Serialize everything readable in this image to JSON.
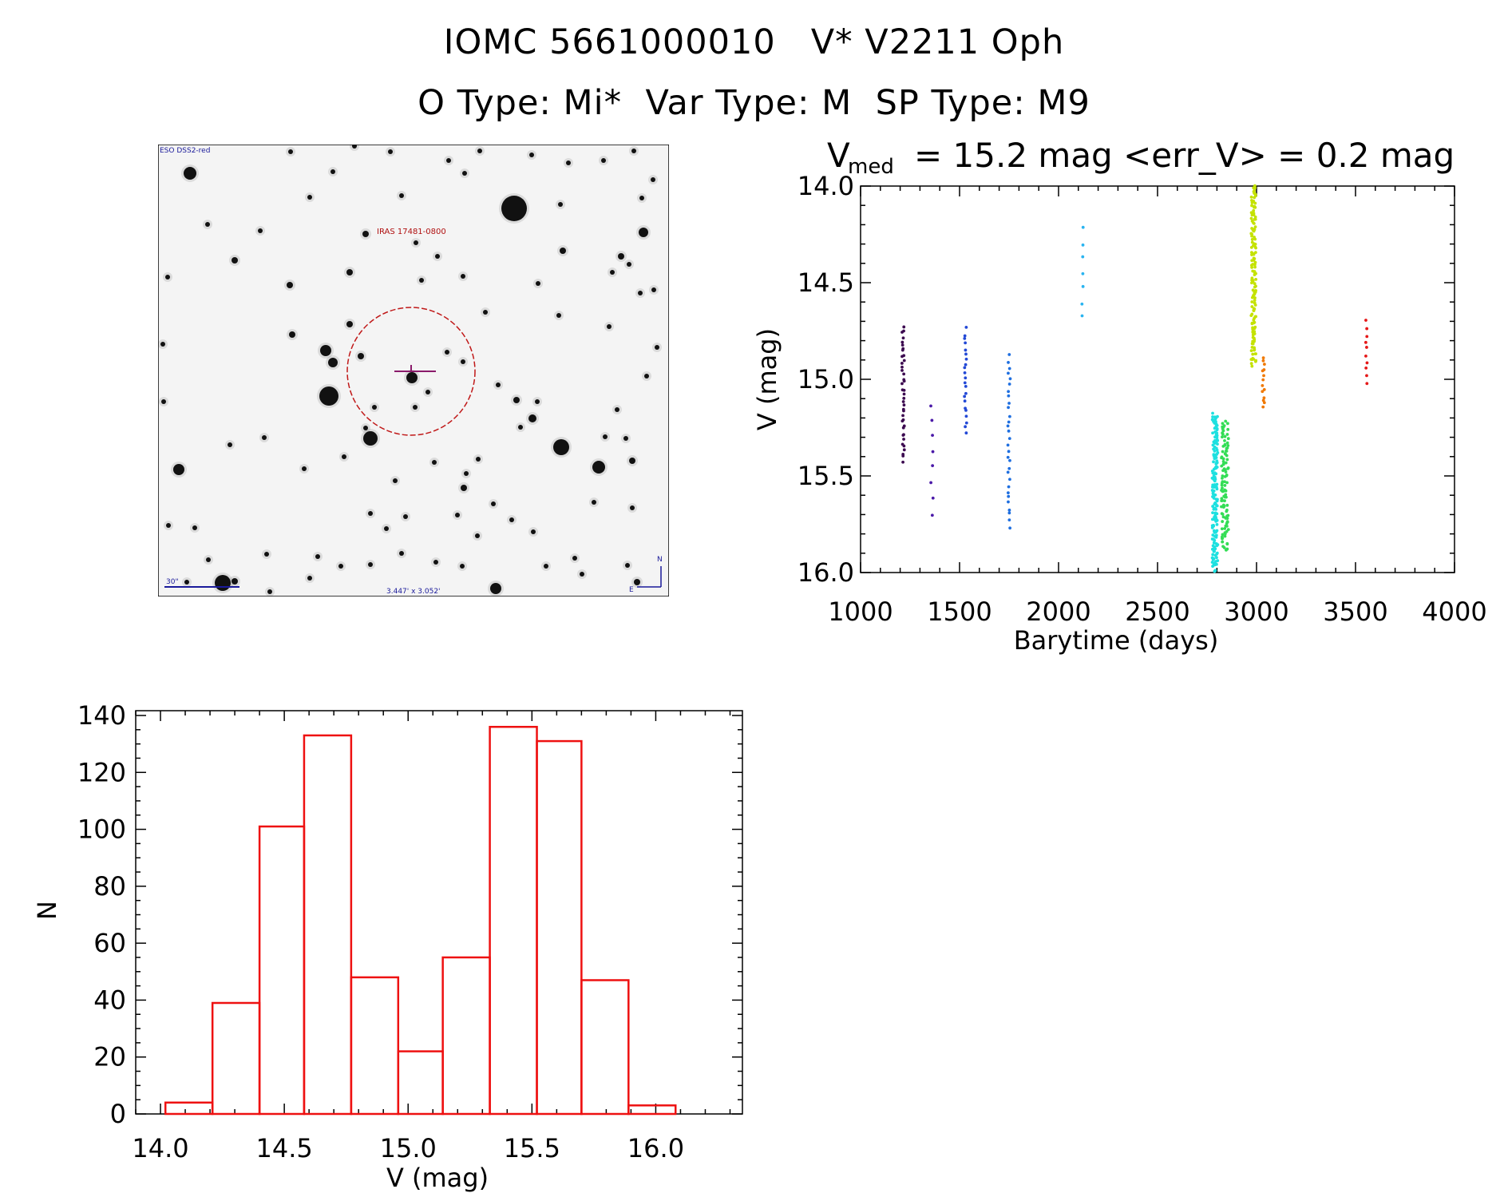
{
  "header": {
    "line1": "IOMC 5661000010   V* V2211 Oph",
    "line2": "O Type: Mi*  Var Type: M  SP Type: M9"
  },
  "finder_chart": {
    "survey_label": "ESO DSS2-red",
    "source_label": "IRAS 17481-0800",
    "scale_label": "30\"",
    "fov_label": "3.447' x 3.052'",
    "north_label": "N",
    "east_label": "E"
  },
  "chart_data": [
    {
      "type": "scatter",
      "title_main": "V",
      "title_sub": "med",
      "title_rest": "= 15.2 mag <err_V> = 0.2 mag",
      "xlabel": "Barytime (days)",
      "ylabel": "V (mag)",
      "xlim": [
        1000,
        4000
      ],
      "ylim": [
        16.0,
        14.0
      ],
      "y_inverted": true,
      "xticks": [
        "1000",
        "1500",
        "2000",
        "2500",
        "3000",
        "3500",
        "4000"
      ],
      "yticks": [
        "14.0",
        "14.5",
        "15.0",
        "15.5",
        "16.0"
      ],
      "color_map": "rainbow (by time)",
      "clusters": [
        {
          "x": 1215,
          "spread": 6,
          "n": 40,
          "ymin": 14.73,
          "ymax": 15.42,
          "color": "#3c0a50"
        },
        {
          "x": 1360,
          "spread": 8,
          "n": 8,
          "ymin": 15.13,
          "ymax": 15.7,
          "color": "#4b1aa8"
        },
        {
          "x": 1530,
          "spread": 6,
          "n": 22,
          "ymin": 14.74,
          "ymax": 15.27,
          "color": "#2349d6"
        },
        {
          "x": 1750,
          "spread": 6,
          "n": 30,
          "ymin": 14.88,
          "ymax": 15.76,
          "color": "#1f6fe0"
        },
        {
          "x": 2120,
          "spread": 4,
          "n": 7,
          "ymin": 14.22,
          "ymax": 14.68,
          "color": "#2ab4f0"
        },
        {
          "x": 2790,
          "spread": 14,
          "n": 160,
          "ymin": 15.18,
          "ymax": 15.99,
          "color": "#1de0e0"
        },
        {
          "x": 2840,
          "spread": 18,
          "n": 110,
          "ymin": 15.22,
          "ymax": 15.88,
          "color": "#33dd55"
        },
        {
          "x": 2985,
          "spread": 12,
          "n": 140,
          "ymin": 14.0,
          "ymax": 14.93,
          "color": "#c4e200"
        },
        {
          "x": 3035,
          "spread": 6,
          "n": 14,
          "ymin": 14.88,
          "ymax": 15.15,
          "color": "#f07800"
        },
        {
          "x": 3555,
          "spread": 4,
          "n": 10,
          "ymin": 14.7,
          "ymax": 15.02,
          "color": "#e51818"
        }
      ]
    },
    {
      "type": "bar",
      "subtype": "histogram",
      "xlabel": "V (mag)",
      "ylabel": "N",
      "xlim": [
        13.9,
        16.35
      ],
      "ylim": [
        0,
        140
      ],
      "xticks": [
        "14.0",
        "14.5",
        "15.0",
        "15.5",
        "16.0"
      ],
      "yticks": [
        "0",
        "20",
        "40",
        "60",
        "80",
        "100",
        "120",
        "140"
      ],
      "bin_edges": [
        14.02,
        14.21,
        14.4,
        14.58,
        14.77,
        14.96,
        15.14,
        15.33,
        15.52,
        15.7,
        15.89,
        16.08
      ],
      "values": [
        4,
        39,
        101,
        133,
        48,
        22,
        55,
        136,
        131,
        47,
        3
      ],
      "color": "#ee1111"
    }
  ]
}
